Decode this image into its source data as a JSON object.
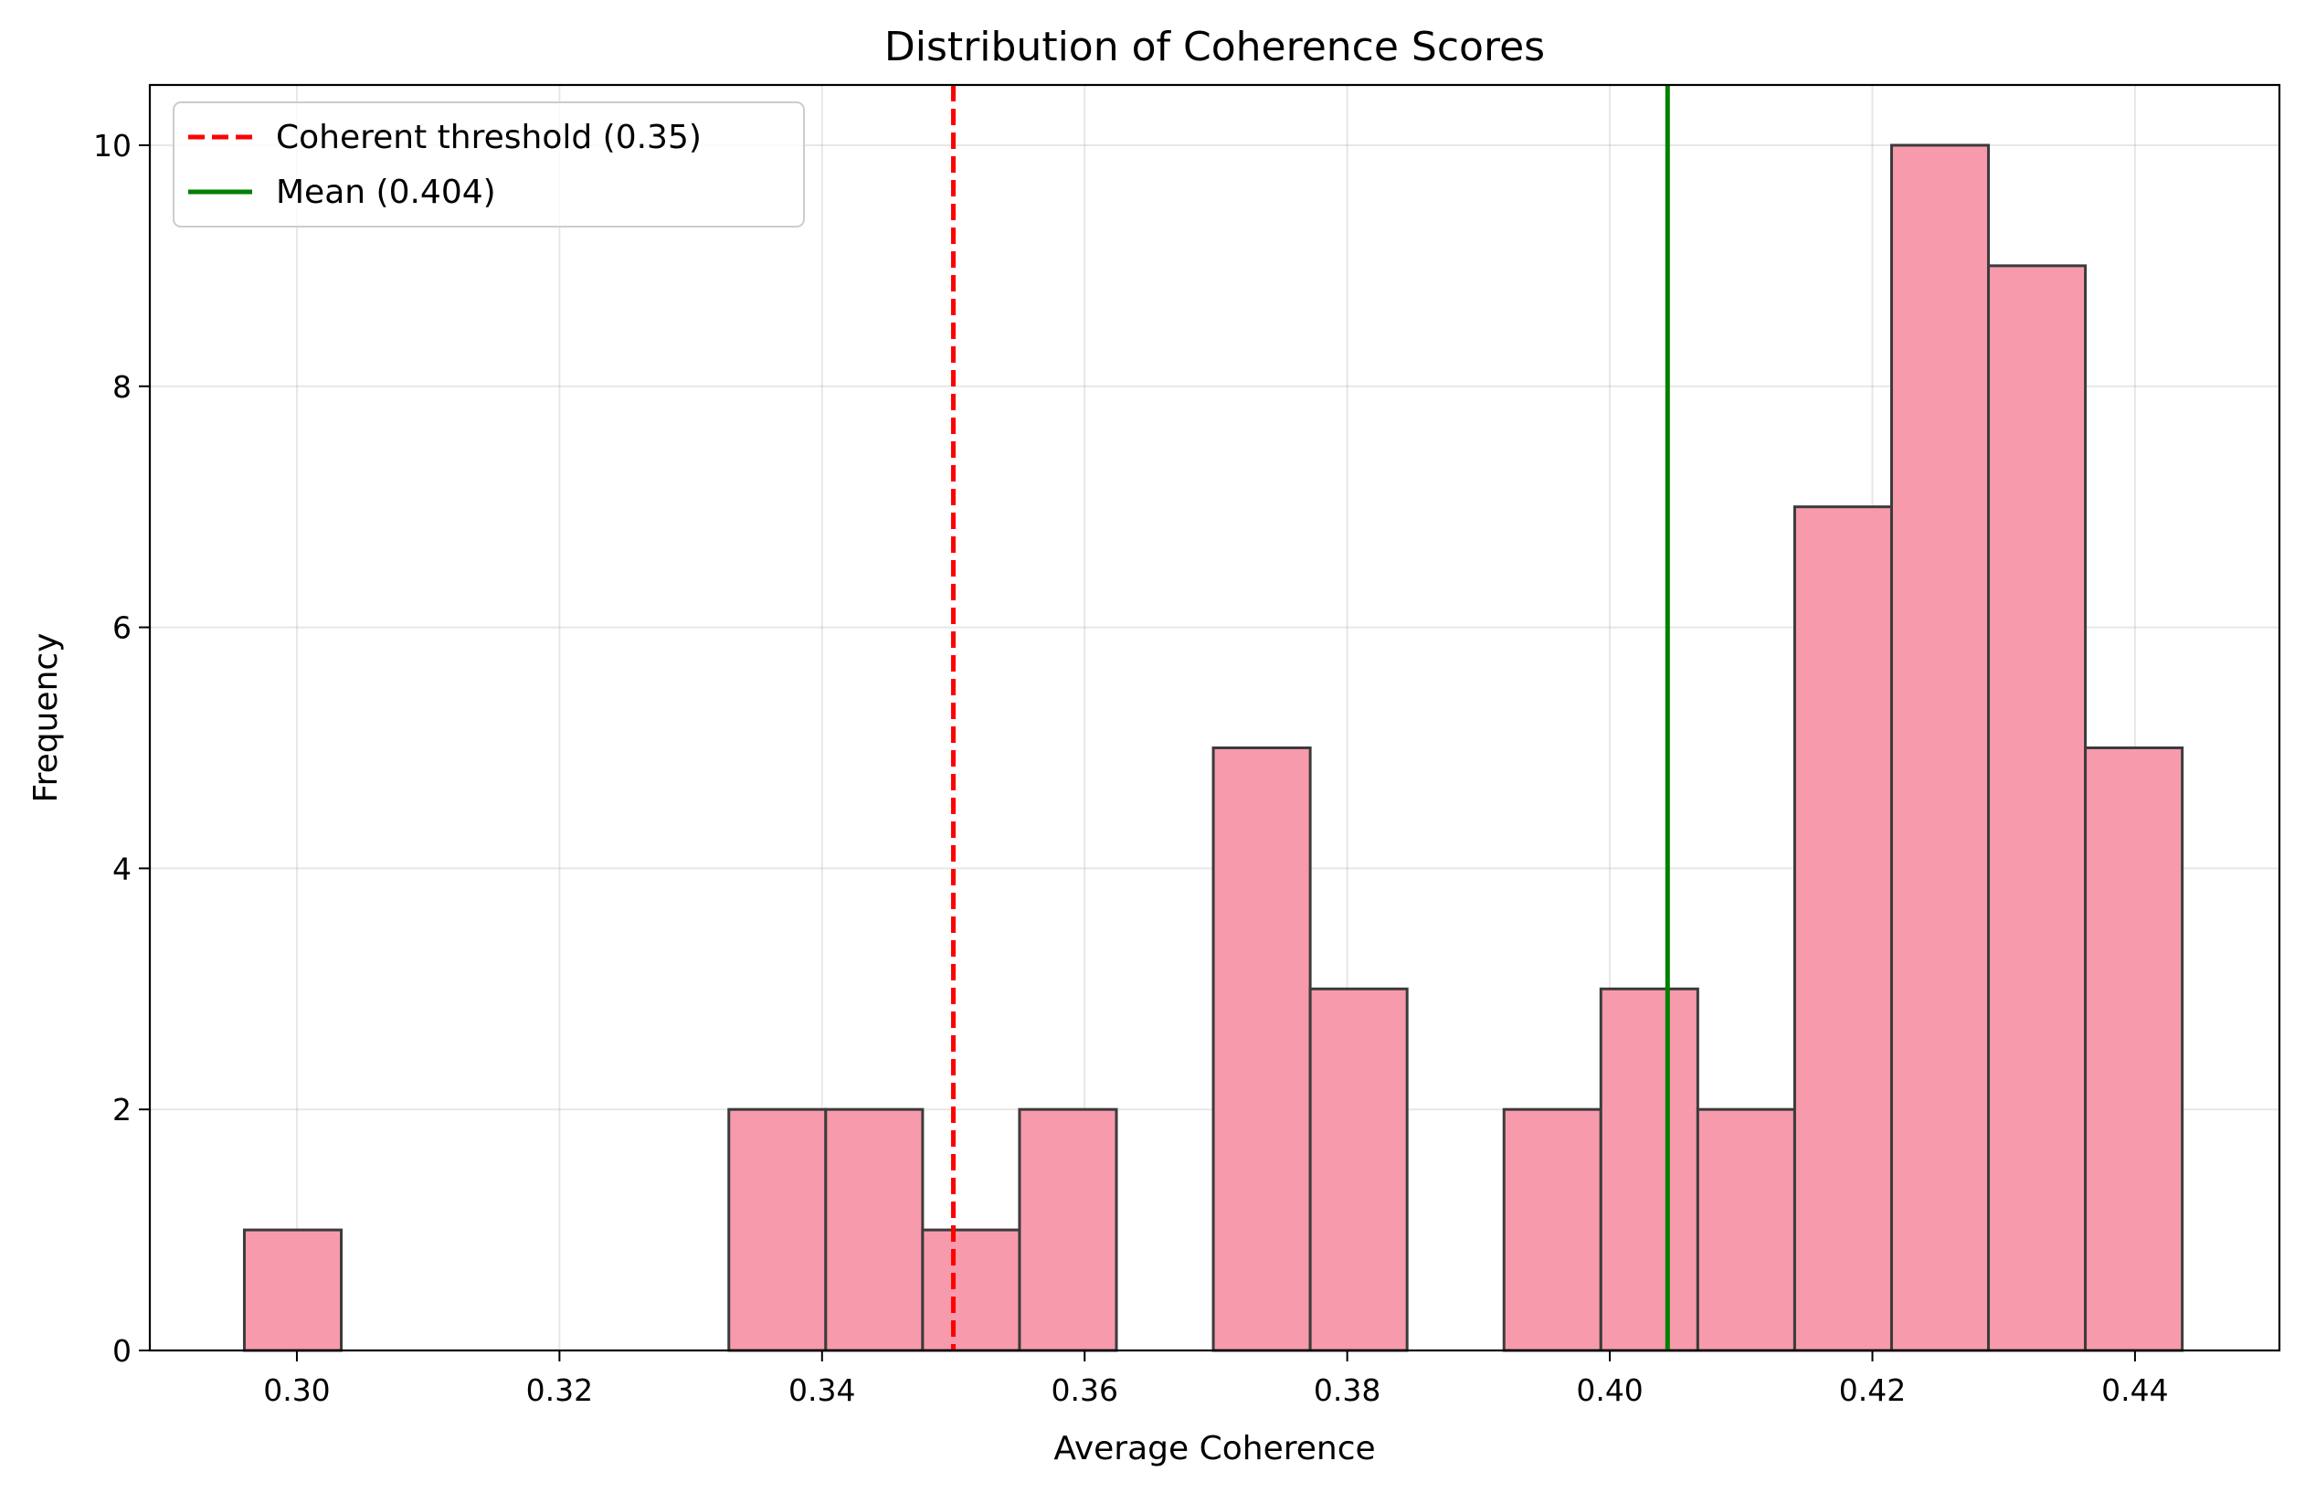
{
  "chart_data": {
    "type": "bar",
    "title": "Distribution of Coherence Scores",
    "xlabel": "Average Coherence",
    "ylabel": "Frequency",
    "xlim": [
      0.2888,
      0.451
    ],
    "ylim": [
      0,
      10.5
    ],
    "xticks": [
      0.3,
      0.32,
      0.34,
      0.36,
      0.38,
      0.4,
      0.42,
      0.44
    ],
    "xtick_labels": [
      "0.30",
      "0.32",
      "0.34",
      "0.36",
      "0.38",
      "0.40",
      "0.42",
      "0.44"
    ],
    "yticks": [
      0,
      2,
      4,
      6,
      8,
      10
    ],
    "ytick_labels": [
      "0",
      "2",
      "4",
      "6",
      "8",
      "10"
    ],
    "grid": true,
    "bins": {
      "start": 0.296,
      "width": 0.00738,
      "counts": [
        1,
        0,
        0,
        0,
        0,
        2,
        2,
        1,
        2,
        0,
        5,
        3,
        0,
        2,
        3,
        2,
        7,
        10,
        9,
        5
      ]
    },
    "bar_color": "#f79aab",
    "bar_edge_color": "#3b3b3b",
    "reference_lines": [
      {
        "name": "Coherent threshold (0.35)",
        "x": 0.35,
        "color": "#ff0000",
        "style": "dashed"
      },
      {
        "name": "Mean (0.404)",
        "x": 0.4044,
        "color": "#007f00",
        "style": "solid"
      }
    ],
    "legend": {
      "placement": "top-left"
    }
  }
}
